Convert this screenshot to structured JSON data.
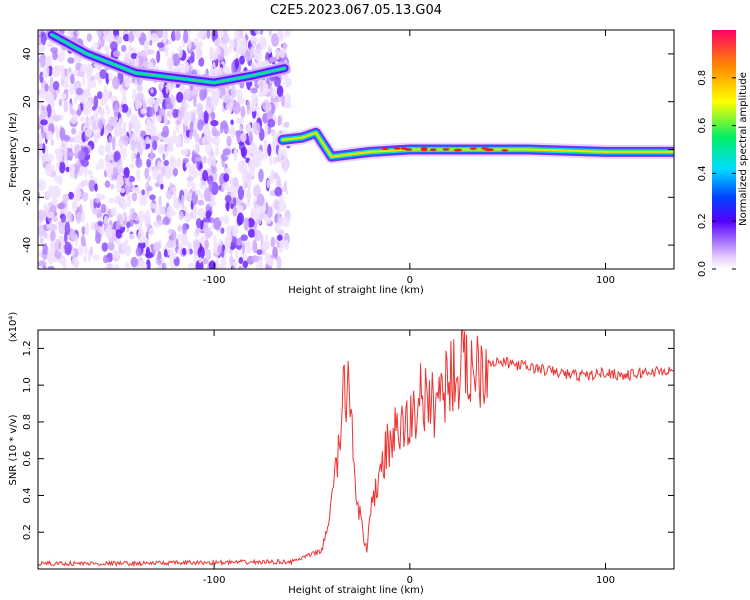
{
  "title": "C2E5.2023.067.05.13.G04",
  "chart_data": [
    {
      "type": "heatmap",
      "xlabel": "Height of straight line (km)",
      "ylabel": "Frequency (Hz)",
      "xlim": [
        -190,
        135
      ],
      "ylim": [
        -50,
        50
      ],
      "xticks": [
        -100,
        0,
        100
      ],
      "yticks": [
        -40,
        -20,
        0,
        20,
        40
      ],
      "colorbar": {
        "label": "Normalized spectral amplitude",
        "range": [
          0,
          1
        ],
        "ticks": [
          "0.0",
          "0.2",
          "0.4",
          "0.6",
          "0.8"
        ]
      },
      "features": {
        "noise_region_x": [
          -190,
          -62
        ],
        "carrier_track": [
          [
            -65,
            4
          ],
          [
            -55,
            5
          ],
          [
            -48,
            7
          ],
          [
            -44,
            2
          ],
          [
            -40,
            -3
          ],
          [
            -30,
            -2
          ],
          [
            -20,
            -1
          ],
          [
            0,
            0
          ],
          [
            20,
            0
          ],
          [
            60,
            0
          ],
          [
            100,
            -1
          ],
          [
            135,
            -1
          ]
        ],
        "upper_track": [
          [
            -183,
            48
          ],
          [
            -165,
            40
          ],
          [
            -140,
            32
          ],
          [
            -120,
            30
          ],
          [
            -100,
            28
          ],
          [
            -80,
            31
          ],
          [
            -64,
            34
          ]
        ]
      }
    },
    {
      "type": "line",
      "xlabel": "Height of straight line (km)",
      "ylabel": "SNR (10 * v/v)",
      "yunit": "(x10⁴)",
      "xlim": [
        -190,
        135
      ],
      "ylim": [
        0,
        1.3
      ],
      "xticks": [
        -100,
        0,
        100
      ],
      "yticks": [
        "0.2",
        "0.4",
        "0.6",
        "0.8",
        "1.0",
        "1.2"
      ],
      "series": [
        {
          "color": "#ee3333",
          "x": [
            -190,
            -150,
            -100,
            -60,
            -45,
            -40,
            -37,
            -34,
            -31,
            -28,
            -25,
            -22,
            -20,
            -15,
            -10,
            -5,
            0,
            3,
            5,
            8,
            10,
            15,
            20,
            30,
            40,
            50,
            60,
            70,
            80,
            90,
            100,
            110,
            120,
            135
          ],
          "y": [
            0.03,
            0.03,
            0.035,
            0.04,
            0.1,
            0.35,
            0.6,
            0.9,
            1.05,
            0.5,
            0.25,
            0.08,
            0.3,
            0.55,
            0.7,
            0.75,
            0.8,
            0.85,
            1.0,
            0.9,
            0.88,
            0.95,
            1.05,
            1.1,
            1.13,
            1.12,
            1.1,
            1.08,
            1.06,
            1.05,
            1.07,
            1.05,
            1.07,
            1.08
          ]
        }
      ]
    }
  ]
}
